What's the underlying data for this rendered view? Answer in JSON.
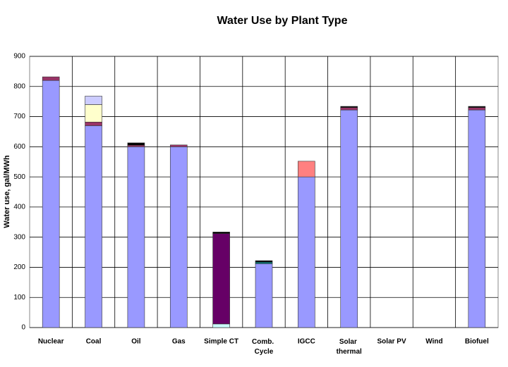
{
  "chart_data": {
    "type": "stacked_bar",
    "title": "Water Use by Plant Type",
    "y_label": "Water use, gal/MWh",
    "categories": [
      "Nuclear",
      "Coal",
      "Oil",
      "Gas",
      "Simple CT",
      "Comb. Cycle",
      "IGCC",
      "Solar thermal",
      "Solar PV",
      "Wind",
      "Biofuel"
    ],
    "series": [
      {
        "color": "#9999ff",
        "values": [
          820,
          670,
          600,
          600,
          0,
          212,
          500,
          722,
          0,
          0,
          722
        ]
      },
      {
        "color": "#ccffff",
        "values": [
          0,
          0,
          0,
          0,
          12,
          0,
          0,
          0,
          0,
          0,
          0
        ]
      },
      {
        "color": "#993366",
        "values": [
          12,
          12,
          5,
          6,
          0,
          0,
          0,
          8,
          0,
          0,
          8
        ]
      },
      {
        "color": "#660066",
        "values": [
          0,
          0,
          0,
          0,
          300,
          0,
          0,
          0,
          0,
          0,
          0
        ]
      },
      {
        "color": "#008080",
        "values": [
          0,
          0,
          0,
          0,
          0,
          5,
          0,
          0,
          0,
          0,
          0
        ]
      },
      {
        "color": "#000000",
        "values": [
          0,
          0,
          8,
          0,
          5,
          5,
          0,
          4,
          0,
          0,
          4
        ]
      },
      {
        "color": "#ffffcc",
        "values": [
          0,
          58,
          0,
          0,
          0,
          0,
          0,
          0,
          0,
          0,
          0
        ]
      },
      {
        "color": "#ccccff",
        "values": [
          0,
          28,
          0,
          0,
          0,
          0,
          0,
          0,
          0,
          0,
          0
        ]
      },
      {
        "color": "#ff8080",
        "values": [
          0,
          0,
          0,
          0,
          0,
          0,
          52,
          0,
          0,
          0,
          0
        ]
      }
    ],
    "ylim": [
      0,
      900
    ],
    "yticks": [
      0,
      100,
      200,
      300,
      400,
      500,
      600,
      700,
      800,
      900
    ],
    "grid": true
  }
}
